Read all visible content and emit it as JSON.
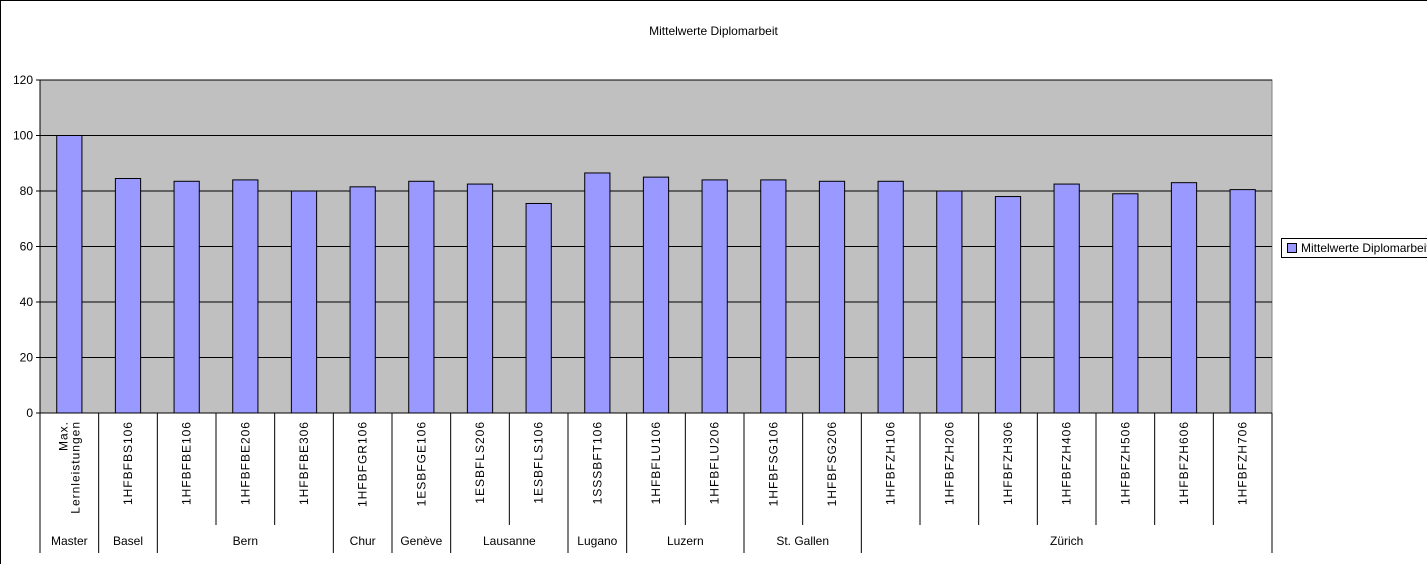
{
  "chart_data": {
    "type": "bar",
    "title": "Mittelwerte Diplomarbeit",
    "xlabel": "",
    "ylabel": "",
    "ylim": [
      0,
      120
    ],
    "yticks": [
      0,
      20,
      40,
      60,
      80,
      100,
      120
    ],
    "grid": true,
    "legend_position": "right",
    "colors": {
      "bar": "#9999ff",
      "plot_background": "#c0c0c0",
      "grid": "#000000"
    },
    "categories": [
      "Max. Lernleistungen",
      "1HFBFBS106",
      "1HFBFBE106",
      "1HFBFBE206",
      "1HFBFBE306",
      "1HFBFGR106",
      "1ESBFGE106",
      "1ESBFLS206",
      "1ESBFLS106",
      "1SSSBFT106",
      "1HFBFLU106",
      "1HFBFLU206",
      "1HFBFSG106",
      "1HFBFSG206",
      "1HFBFZH106",
      "1HFBFZH206",
      "1HFBFZH306",
      "1HFBFZH406",
      "1HFBFZH506",
      "1HFBFZH606",
      "1HFBFZH706"
    ],
    "groups": [
      {
        "label": "Master",
        "count": 1
      },
      {
        "label": "Basel",
        "count": 1
      },
      {
        "label": "Bern",
        "count": 3
      },
      {
        "label": "Chur",
        "count": 1
      },
      {
        "label": "Genève",
        "count": 1
      },
      {
        "label": "Lausanne",
        "count": 2
      },
      {
        "label": "Lugano",
        "count": 1
      },
      {
        "label": "Luzern",
        "count": 2
      },
      {
        "label": "St. Gallen",
        "count": 2
      },
      {
        "label": "Zürich",
        "count": 7
      }
    ],
    "series": [
      {
        "name": "Mittelwerte Diplomarbeit",
        "values": [
          100,
          84.5,
          83.5,
          84,
          80,
          81.5,
          83.5,
          82.5,
          75.5,
          86.5,
          85,
          84,
          84,
          83.5,
          83.5,
          80,
          78,
          82.5,
          79,
          83,
          80.5
        ]
      }
    ]
  }
}
